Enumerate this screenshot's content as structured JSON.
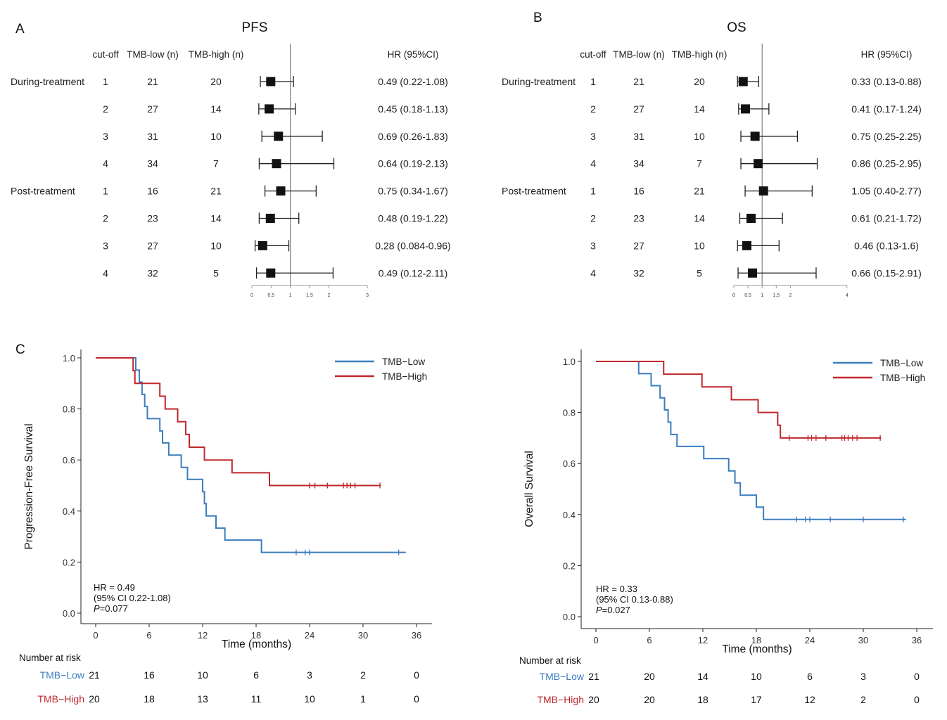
{
  "panels": {
    "A": {
      "letter": "A",
      "title": "PFS"
    },
    "B": {
      "letter": "B",
      "title": "OS"
    },
    "C": {
      "letter": "C"
    }
  },
  "forest_headers": {
    "cutoff": "cut-off",
    "low": "TMB-low (n)",
    "high": "TMB-high (n)",
    "hr": "HR (95%CI)"
  },
  "group_labels": [
    "During-treatment",
    "Post-treatment"
  ],
  "risk_title": "Number at risk",
  "colors": {
    "low": "#3b7dbf",
    "high": "#c0272d",
    "ink": "#222222",
    "axis": "#888888"
  },
  "chart_data": [
    {
      "type": "forest",
      "panel": "A",
      "title": "PFS",
      "xlim": [
        0,
        3
      ],
      "ref_line": 1,
      "xticks": [
        "0",
        "0.5",
        "1",
        "1.5",
        "2",
        "3"
      ],
      "xtick_values": [
        0,
        0.5,
        1,
        1.5,
        2,
        3
      ],
      "rows": [
        {
          "group": "During-treatment",
          "cutoff": "1",
          "low": "21",
          "high": "20",
          "hr": 0.49,
          "lo": 0.22,
          "hi": 1.08,
          "label": "0.49 (0.22-1.08)"
        },
        {
          "group": "",
          "cutoff": "2",
          "low": "27",
          "high": "14",
          "hr": 0.45,
          "lo": 0.18,
          "hi": 1.13,
          "label": "0.45 (0.18-1.13)"
        },
        {
          "group": "",
          "cutoff": "3",
          "low": "31",
          "high": "10",
          "hr": 0.69,
          "lo": 0.26,
          "hi": 1.83,
          "label": "0.69 (0.26-1.83)"
        },
        {
          "group": "",
          "cutoff": "4",
          "low": "34",
          "high": "7",
          "hr": 0.64,
          "lo": 0.19,
          "hi": 2.13,
          "label": "0.64 (0.19-2.13)"
        },
        {
          "group": "Post-treatment",
          "cutoff": "1",
          "low": "16",
          "high": "21",
          "hr": 0.75,
          "lo": 0.34,
          "hi": 1.67,
          "label": "0.75 (0.34-1.67)"
        },
        {
          "group": "",
          "cutoff": "2",
          "low": "23",
          "high": "14",
          "hr": 0.48,
          "lo": 0.19,
          "hi": 1.22,
          "label": "0.48 (0.19-1.22)"
        },
        {
          "group": "",
          "cutoff": "3",
          "low": "27",
          "high": "10",
          "hr": 0.28,
          "lo": 0.084,
          "hi": 0.96,
          "label": "0.28 (0.084-0.96)"
        },
        {
          "group": "",
          "cutoff": "4",
          "low": "32",
          "high": "5",
          "hr": 0.49,
          "lo": 0.12,
          "hi": 2.11,
          "label": "0.49 (0.12-2.11)"
        }
      ]
    },
    {
      "type": "forest",
      "panel": "B",
      "title": "OS",
      "xlim": [
        0,
        4
      ],
      "ref_line": 1,
      "xticks": [
        "0",
        "0.5",
        "1",
        "1.5",
        "2",
        "4"
      ],
      "xtick_values": [
        0,
        0.5,
        1,
        1.5,
        2,
        4
      ],
      "rows": [
        {
          "group": "During-treatment",
          "cutoff": "1",
          "low": "21",
          "high": "20",
          "hr": 0.33,
          "lo": 0.13,
          "hi": 0.88,
          "label": "0.33 (0.13-0.88)"
        },
        {
          "group": "",
          "cutoff": "2",
          "low": "27",
          "high": "14",
          "hr": 0.41,
          "lo": 0.17,
          "hi": 1.24,
          "label": "0.41 (0.17-1.24)"
        },
        {
          "group": "",
          "cutoff": "3",
          "low": "31",
          "high": "10",
          "hr": 0.75,
          "lo": 0.25,
          "hi": 2.25,
          "label": "0.75 (0.25-2.25)"
        },
        {
          "group": "",
          "cutoff": "4",
          "low": "34",
          "high": "7",
          "hr": 0.86,
          "lo": 0.25,
          "hi": 2.95,
          "label": "0.86 (0.25-2.95)"
        },
        {
          "group": "Post-treatment",
          "cutoff": "1",
          "low": "16",
          "high": "21",
          "hr": 1.05,
          "lo": 0.4,
          "hi": 2.77,
          "label": "1.05 (0.40-2.77)"
        },
        {
          "group": "",
          "cutoff": "2",
          "low": "23",
          "high": "14",
          "hr": 0.61,
          "lo": 0.21,
          "hi": 1.72,
          "label": "0.61 (0.21-1.72)"
        },
        {
          "group": "",
          "cutoff": "3",
          "low": "27",
          "high": "10",
          "hr": 0.46,
          "lo": 0.13,
          "hi": 1.6,
          "label": "0.46 (0.13-1.6)"
        },
        {
          "group": "",
          "cutoff": "4",
          "low": "32",
          "high": "5",
          "hr": 0.66,
          "lo": 0.15,
          "hi": 2.91,
          "label": "0.66 (0.15-2.91)"
        }
      ]
    },
    {
      "type": "line",
      "subtype": "kaplan-meier",
      "panel": "C-left",
      "xlabel": "Time (months)",
      "ylabel": "Progression-Free Survival",
      "xlim": [
        0,
        36
      ],
      "ylim": [
        0,
        1
      ],
      "xticks": [
        0,
        6,
        12,
        18,
        24,
        30,
        36
      ],
      "yticks": [
        "0.0",
        "0.2",
        "0.4",
        "0.6",
        "0.8",
        "1.0"
      ],
      "legend": [
        "TMB−Low",
        "TMB−High"
      ],
      "legend_position": "top-right",
      "annotation": {
        "hr": "HR = 0.49",
        "ci": "(95% CI 0.22-1.08)",
        "p_label": "P",
        "p_value": "=0.077"
      },
      "series": [
        {
          "name": "TMB−Low",
          "color_key": "low",
          "steps": [
            [
              0,
              1.0
            ],
            [
              4.5,
              0.952
            ],
            [
              4.9,
              0.905
            ],
            [
              5.2,
              0.857
            ],
            [
              5.5,
              0.81
            ],
            [
              5.8,
              0.762
            ],
            [
              7.2,
              0.714
            ],
            [
              7.5,
              0.667
            ],
            [
              8.2,
              0.619
            ],
            [
              9.6,
              0.571
            ],
            [
              10.3,
              0.524
            ],
            [
              12.0,
              0.476
            ],
            [
              12.2,
              0.429
            ],
            [
              12.4,
              0.381
            ],
            [
              13.5,
              0.333
            ],
            [
              14.5,
              0.286
            ],
            [
              18.6,
              0.238
            ]
          ],
          "end": 34.8,
          "censors": [
            [
              22.5,
              0.238
            ],
            [
              23.5,
              0.238
            ],
            [
              24.0,
              0.238
            ],
            [
              34.0,
              0.238
            ]
          ]
        },
        {
          "name": "TMB−High",
          "color_key": "high",
          "steps": [
            [
              0,
              1.0
            ],
            [
              4.2,
              0.95
            ],
            [
              4.4,
              0.9
            ],
            [
              7.2,
              0.85
            ],
            [
              7.8,
              0.8
            ],
            [
              9.2,
              0.75
            ],
            [
              10.1,
              0.7
            ],
            [
              10.5,
              0.65
            ],
            [
              12.2,
              0.6
            ],
            [
              15.3,
              0.55
            ],
            [
              19.5,
              0.5
            ]
          ],
          "end": 32.0,
          "censors": [
            [
              24.0,
              0.5
            ],
            [
              24.6,
              0.5
            ],
            [
              26.0,
              0.5
            ],
            [
              27.8,
              0.5
            ],
            [
              28.2,
              0.5
            ],
            [
              28.6,
              0.5
            ],
            [
              29.1,
              0.5
            ],
            [
              31.9,
              0.5
            ]
          ]
        }
      ],
      "risk_table": {
        "title": "Number at risk",
        "rows": [
          {
            "label": "TMB−Low",
            "color_key": "low",
            "counts": [
              "21",
              "16",
              "10",
              "6",
              "3",
              "2",
              "0"
            ]
          },
          {
            "label": "TMB−High",
            "color_key": "high",
            "counts": [
              "20",
              "18",
              "13",
              "11",
              "10",
              "1",
              "0"
            ]
          }
        ]
      }
    },
    {
      "type": "line",
      "subtype": "kaplan-meier",
      "panel": "C-right",
      "xlabel": "Time (months)",
      "ylabel": "Overall Survival",
      "xlim": [
        0,
        36
      ],
      "ylim": [
        0,
        1
      ],
      "xticks": [
        0,
        6,
        12,
        18,
        24,
        30,
        36
      ],
      "yticks": [
        "0.0",
        "0.2",
        "0.4",
        "0.6",
        "0.8",
        "1.0"
      ],
      "legend": [
        "TMB−Low",
        "TMB−High"
      ],
      "legend_position": "top-right",
      "annotation": {
        "hr": "HR = 0.33",
        "ci": "(95% CI 0.13-0.88)",
        "p_label": "P",
        "p_value": "=0.027"
      },
      "series": [
        {
          "name": "TMB−Low",
          "color_key": "low",
          "steps": [
            [
              0,
              1.0
            ],
            [
              4.8,
              0.952
            ],
            [
              6.2,
              0.905
            ],
            [
              7.2,
              0.857
            ],
            [
              7.7,
              0.81
            ],
            [
              8.1,
              0.762
            ],
            [
              8.4,
              0.714
            ],
            [
              9.1,
              0.667
            ],
            [
              12.1,
              0.619
            ],
            [
              14.9,
              0.571
            ],
            [
              15.6,
              0.524
            ],
            [
              16.2,
              0.476
            ],
            [
              18.0,
              0.429
            ],
            [
              18.8,
              0.381
            ]
          ],
          "end": 34.8,
          "censors": [
            [
              22.5,
              0.381
            ],
            [
              23.5,
              0.381
            ],
            [
              24.0,
              0.381
            ],
            [
              26.3,
              0.381
            ],
            [
              30.0,
              0.381
            ],
            [
              34.5,
              0.381
            ]
          ]
        },
        {
          "name": "TMB−High",
          "color_key": "high",
          "steps": [
            [
              0,
              1.0
            ],
            [
              7.6,
              0.95
            ],
            [
              11.9,
              0.9
            ],
            [
              15.2,
              0.85
            ],
            [
              18.2,
              0.8
            ],
            [
              20.4,
              0.75
            ],
            [
              20.7,
              0.7
            ]
          ],
          "end": 32.0,
          "censors": [
            [
              21.7,
              0.7
            ],
            [
              23.8,
              0.7
            ],
            [
              24.2,
              0.7
            ],
            [
              24.7,
              0.7
            ],
            [
              25.8,
              0.7
            ],
            [
              27.6,
              0.7
            ],
            [
              27.9,
              0.7
            ],
            [
              28.3,
              0.7
            ],
            [
              28.8,
              0.7
            ],
            [
              29.3,
              0.7
            ],
            [
              31.9,
              0.7
            ]
          ]
        }
      ],
      "risk_table": {
        "title": "Number at risk",
        "rows": [
          {
            "label": "TMB−Low",
            "color_key": "low",
            "counts": [
              "21",
              "20",
              "14",
              "10",
              "6",
              "3",
              "0"
            ]
          },
          {
            "label": "TMB−High",
            "color_key": "high",
            "counts": [
              "20",
              "20",
              "18",
              "17",
              "12",
              "2",
              "0"
            ]
          }
        ]
      }
    }
  ]
}
